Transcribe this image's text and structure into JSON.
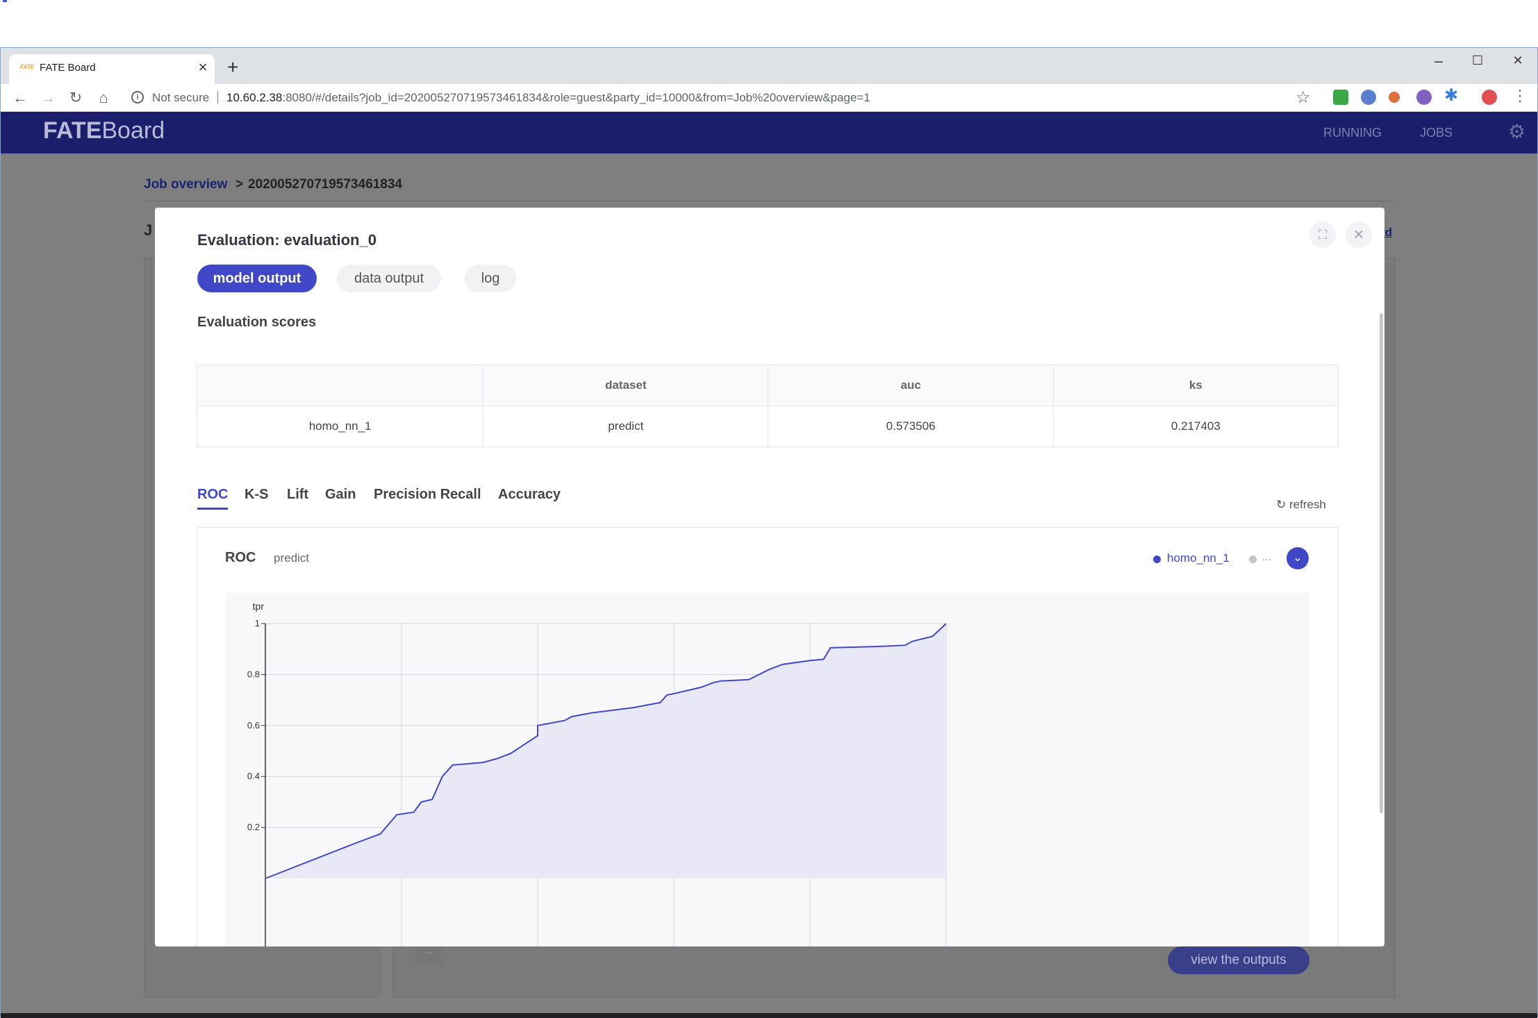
{
  "browser": {
    "tab_title": "FATE Board",
    "tab_favicon": "FATE",
    "new_tab_label": "+",
    "close_tab": "×",
    "window_controls": {
      "minimize": "–",
      "maximize": "☐",
      "close": "✕"
    },
    "security_label": "Not secure",
    "url_host": "10.60.2.38",
    "url_rest": ":8080/#/details?job_id=20200527071957346183​4&role=guest&party_id=10000&from=Job%20overview&page=1"
  },
  "appbar": {
    "logo_bold": "FATE",
    "logo_rest": "Board",
    "nav": [
      "RUNNING",
      "JOBS"
    ]
  },
  "breadcrumb": {
    "link": "Job overview",
    "separator": ">",
    "job_id": "202005270719573461834"
  },
  "background": {
    "heading_fragment": "J",
    "link_fragment": "rd",
    "view_outputs": "view the outputs",
    "minus": "–"
  },
  "modal": {
    "title": "Evaluation: evaluation_0",
    "tabs": [
      "model output",
      "data output",
      "log"
    ],
    "scores_heading": "Evaluation scores",
    "table": {
      "headers": [
        "",
        "dataset",
        "auc",
        "ks"
      ],
      "rows": [
        [
          "homo_nn_1",
          "predict",
          "0.573506",
          "0.217403"
        ]
      ]
    },
    "chart_tabs": [
      "ROC",
      "K-S",
      "Lift",
      "Gain",
      "Precision Recall",
      "Accuracy"
    ],
    "refresh": "refresh",
    "chart_title": "ROC",
    "chart_subtitle": "predict",
    "legend": [
      "homo_nn_1",
      "..."
    ]
  },
  "chart_data": {
    "type": "area",
    "title": "ROC",
    "subtitle": "predict",
    "xlabel": "",
    "ylabel": "tpr",
    "ylim": [
      0,
      1
    ],
    "y_ticks": [
      "0.2",
      "0.4",
      "0.6",
      "0.8",
      "1"
    ],
    "grid": true,
    "legend_position": "top-right",
    "colors": {
      "line": "#4048c8",
      "fill": "#e8e8f6",
      "grid": "#d4d4d8"
    },
    "series": [
      {
        "name": "homo_nn_1",
        "x": [
          0.0,
          0.134,
          0.169,
          0.193,
          0.218,
          0.229,
          0.245,
          0.26,
          0.275,
          0.32,
          0.34,
          0.36,
          0.4,
          0.4,
          0.41,
          0.44,
          0.45,
          0.47,
          0.48,
          0.54,
          0.58,
          0.59,
          0.6,
          0.64,
          0.66,
          0.67,
          0.71,
          0.74,
          0.76,
          0.8,
          0.82,
          0.83,
          0.9,
          0.94,
          0.95,
          0.98,
          1.0
        ],
        "y": [
          0.0,
          0.14,
          0.175,
          0.25,
          0.26,
          0.3,
          0.31,
          0.4,
          0.445,
          0.455,
          0.47,
          0.49,
          0.56,
          0.6,
          0.605,
          0.62,
          0.635,
          0.645,
          0.65,
          0.67,
          0.69,
          0.72,
          0.725,
          0.75,
          0.77,
          0.775,
          0.78,
          0.82,
          0.84,
          0.855,
          0.86,
          0.905,
          0.91,
          0.915,
          0.93,
          0.95,
          1.0
        ]
      }
    ]
  }
}
